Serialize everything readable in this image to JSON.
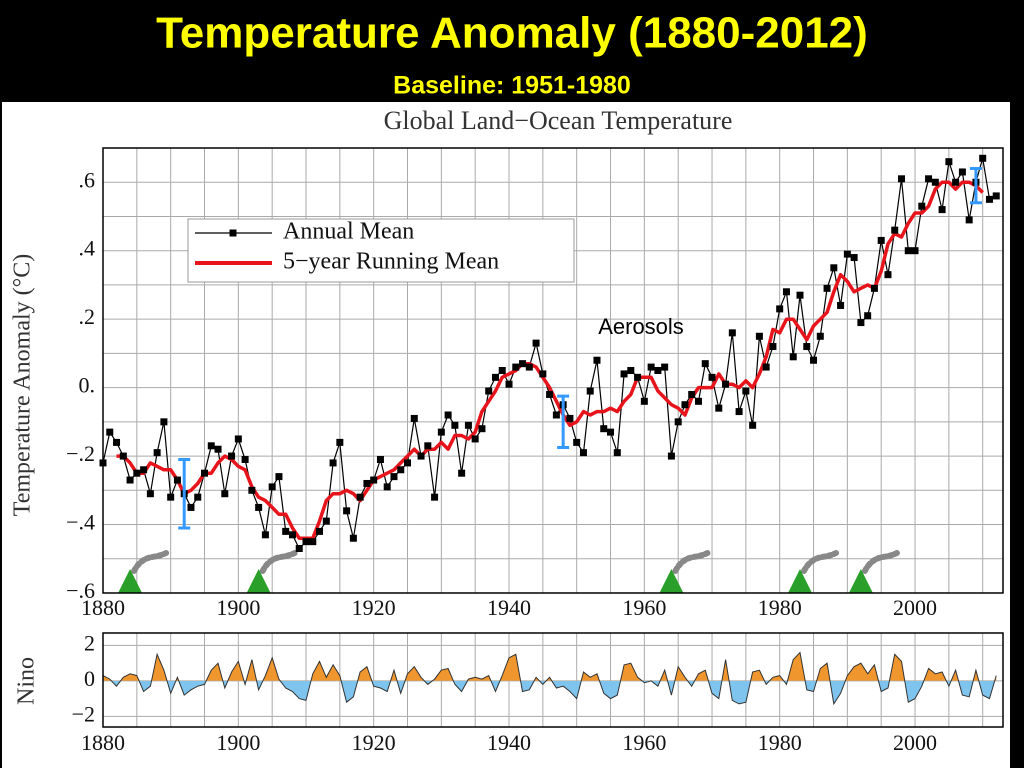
{
  "header": {
    "title": "Temperature Anomaly (1880-2012)",
    "subtitle": "Baseline: 1951-1980"
  },
  "chart_data": [
    {
      "type": "line",
      "title": "Global Land−Ocean Temperature",
      "ylabel": "Temperature Anomaly (°C)",
      "x": [
        1880,
        1881,
        1882,
        1883,
        1884,
        1885,
        1886,
        1887,
        1888,
        1889,
        1890,
        1891,
        1892,
        1893,
        1894,
        1895,
        1896,
        1897,
        1898,
        1899,
        1900,
        1901,
        1902,
        1903,
        1904,
        1905,
        1906,
        1907,
        1908,
        1909,
        1910,
        1911,
        1912,
        1913,
        1914,
        1915,
        1916,
        1917,
        1918,
        1919,
        1920,
        1921,
        1922,
        1923,
        1924,
        1925,
        1926,
        1927,
        1928,
        1929,
        1930,
        1931,
        1932,
        1933,
        1934,
        1935,
        1936,
        1937,
        1938,
        1939,
        1940,
        1941,
        1942,
        1943,
        1944,
        1945,
        1946,
        1947,
        1948,
        1949,
        1950,
        1951,
        1952,
        1953,
        1954,
        1955,
        1956,
        1957,
        1958,
        1959,
        1960,
        1961,
        1962,
        1963,
        1964,
        1965,
        1966,
        1967,
        1968,
        1969,
        1970,
        1971,
        1972,
        1973,
        1974,
        1975,
        1976,
        1977,
        1978,
        1979,
        1980,
        1981,
        1982,
        1983,
        1984,
        1985,
        1986,
        1987,
        1988,
        1989,
        1990,
        1991,
        1992,
        1993,
        1994,
        1995,
        1996,
        1997,
        1998,
        1999,
        2000,
        2001,
        2002,
        2003,
        2004,
        2005,
        2006,
        2007,
        2008,
        2009,
        2010,
        2011,
        2012
      ],
      "series": [
        {
          "name": "Annual Mean",
          "color": "#000000",
          "values": [
            -0.22,
            -0.13,
            -0.16,
            -0.2,
            -0.27,
            -0.25,
            -0.24,
            -0.31,
            -0.19,
            -0.1,
            -0.32,
            -0.27,
            -0.31,
            -0.35,
            -0.32,
            -0.25,
            -0.17,
            -0.18,
            -0.31,
            -0.2,
            -0.15,
            -0.21,
            -0.3,
            -0.35,
            -0.43,
            -0.29,
            -0.26,
            -0.42,
            -0.43,
            -0.47,
            -0.45,
            -0.45,
            -0.42,
            -0.39,
            -0.22,
            -0.16,
            -0.36,
            -0.44,
            -0.32,
            -0.28,
            -0.27,
            -0.21,
            -0.29,
            -0.26,
            -0.24,
            -0.22,
            -0.09,
            -0.2,
            -0.17,
            -0.32,
            -0.13,
            -0.08,
            -0.11,
            -0.25,
            -0.11,
            -0.15,
            -0.12,
            -0.01,
            0.03,
            0.05,
            0.01,
            0.06,
            0.07,
            0.06,
            0.13,
            0.04,
            -0.02,
            -0.08,
            -0.05,
            -0.09,
            -0.16,
            -0.19,
            -0.01,
            0.08,
            -0.12,
            -0.13,
            -0.19,
            0.04,
            0.05,
            0.03,
            -0.04,
            0.06,
            0.05,
            0.06,
            -0.2,
            -0.1,
            -0.05,
            -0.02,
            -0.04,
            0.07,
            0.03,
            -0.06,
            0.01,
            0.16,
            -0.07,
            -0.01,
            -0.11,
            0.15,
            0.06,
            0.12,
            0.23,
            0.28,
            0.09,
            0.27,
            0.12,
            0.08,
            0.15,
            0.29,
            0.35,
            0.24,
            0.39,
            0.38,
            0.19,
            0.21,
            0.29,
            0.43,
            0.33,
            0.46,
            0.61,
            0.4,
            0.4,
            0.53,
            0.61,
            0.6,
            0.52,
            0.66,
            0.6,
            0.63,
            0.49,
            0.6,
            0.67,
            0.55,
            0.56
          ]
        },
        {
          "name": "5−year Running Mean",
          "color": "#e8141c",
          "values": [
            null,
            null,
            -0.2,
            -0.2,
            -0.22,
            -0.25,
            -0.25,
            -0.22,
            -0.23,
            -0.24,
            -0.24,
            -0.27,
            -0.31,
            -0.3,
            -0.28,
            -0.25,
            -0.25,
            -0.22,
            -0.2,
            -0.21,
            -0.23,
            -0.24,
            -0.29,
            -0.32,
            -0.33,
            -0.35,
            -0.37,
            -0.37,
            -0.41,
            -0.44,
            -0.44,
            -0.44,
            -0.39,
            -0.33,
            -0.31,
            -0.31,
            -0.3,
            -0.31,
            -0.33,
            -0.3,
            -0.27,
            -0.26,
            -0.25,
            -0.24,
            -0.22,
            -0.2,
            -0.18,
            -0.2,
            -0.18,
            -0.18,
            -0.16,
            -0.18,
            -0.14,
            -0.14,
            -0.15,
            -0.13,
            -0.07,
            -0.04,
            -0.01,
            0.03,
            0.04,
            0.05,
            0.07,
            0.07,
            0.06,
            0.03,
            0.0,
            -0.04,
            -0.08,
            -0.11,
            -0.1,
            -0.07,
            -0.08,
            -0.07,
            -0.07,
            -0.06,
            -0.07,
            -0.04,
            -0.02,
            0.03,
            0.03,
            0.03,
            -0.01,
            -0.03,
            -0.05,
            -0.06,
            -0.08,
            -0.03,
            0.0,
            0.0,
            0.0,
            0.04,
            0.01,
            0.01,
            0.0,
            0.02,
            0.0,
            0.04,
            0.09,
            0.17,
            0.16,
            0.2,
            0.2,
            0.17,
            0.14,
            0.18,
            0.2,
            0.22,
            0.28,
            0.33,
            0.31,
            0.28,
            0.29,
            0.3,
            0.29,
            0.34,
            0.42,
            0.45,
            0.44,
            0.48,
            0.51,
            0.51,
            0.53,
            0.58,
            0.6,
            0.6,
            0.58,
            0.6,
            0.6,
            0.59,
            0.57,
            null,
            null
          ]
        }
      ],
      "error_bars": [
        {
          "x": 1892,
          "value": -0.31,
          "error": 0.1,
          "color": "#3399ff"
        },
        {
          "x": 1948,
          "value": -0.1,
          "error": 0.075,
          "color": "#3399ff"
        },
        {
          "x": 2009,
          "value": 0.59,
          "error": 0.05,
          "color": "#3399ff"
        }
      ],
      "volcanoes": [
        1884,
        1903,
        1964,
        1983,
        1992
      ],
      "annotations": [
        "Aerosols"
      ],
      "xlim": [
        1880,
        2013
      ],
      "xticks": [
        1880,
        1900,
        1920,
        1940,
        1960,
        1980,
        2000
      ],
      "xminor": [
        1885,
        1890,
        1895,
        1905,
        1910,
        1915,
        1925,
        1930,
        1935,
        1945,
        1950,
        1955,
        1965,
        1970,
        1975,
        1985,
        1990,
        1995,
        2005,
        2010
      ],
      "ylim": [
        -0.6,
        0.7
      ],
      "yticks": [
        {
          "value": -0.6,
          "label": "−.6"
        },
        {
          "value": -0.4,
          "label": "−.4"
        },
        {
          "value": -0.2,
          "label": "−.2"
        },
        {
          "value": 0,
          "label": "0."
        },
        {
          "value": 0.2,
          "label": ".2"
        },
        {
          "value": 0.4,
          "label": ".4"
        },
        {
          "value": 0.6,
          "label": ".6"
        }
      ],
      "yminor": [
        -0.5,
        -0.3,
        -0.1,
        0.1,
        0.3,
        0.5
      ],
      "grid": true,
      "legend": "upper left"
    },
    {
      "type": "area",
      "ylabel": "Nino",
      "x": [
        1880,
        1881,
        1882,
        1883,
        1884,
        1885,
        1886,
        1887,
        1888,
        1889,
        1890,
        1891,
        1892,
        1893,
        1894,
        1895,
        1896,
        1897,
        1898,
        1899,
        1900,
        1901,
        1902,
        1903,
        1904,
        1905,
        1906,
        1907,
        1908,
        1909,
        1910,
        1911,
        1912,
        1913,
        1914,
        1915,
        1916,
        1917,
        1918,
        1919,
        1920,
        1921,
        1922,
        1923,
        1924,
        1925,
        1926,
        1927,
        1928,
        1929,
        1930,
        1931,
        1932,
        1933,
        1934,
        1935,
        1936,
        1937,
        1938,
        1939,
        1940,
        1941,
        1942,
        1943,
        1944,
        1945,
        1946,
        1947,
        1948,
        1949,
        1950,
        1951,
        1952,
        1953,
        1954,
        1955,
        1956,
        1957,
        1958,
        1959,
        1960,
        1961,
        1962,
        1963,
        1964,
        1965,
        1966,
        1967,
        1968,
        1969,
        1970,
        1971,
        1972,
        1973,
        1974,
        1975,
        1976,
        1977,
        1978,
        1979,
        1980,
        1981,
        1982,
        1983,
        1984,
        1985,
        1986,
        1987,
        1988,
        1989,
        1990,
        1991,
        1992,
        1993,
        1994,
        1995,
        1996,
        1997,
        1998,
        1999,
        2000,
        2001,
        2002,
        2003,
        2004,
        2005,
        2006,
        2007,
        2008,
        2009,
        2010,
        2011,
        2012
      ],
      "values": [
        0.3,
        0.1,
        -0.3,
        0.2,
        0.4,
        0.3,
        -0.6,
        -0.3,
        1.5,
        0.6,
        -0.7,
        0.2,
        -0.8,
        -0.5,
        -0.3,
        -0.2,
        0.6,
        1.0,
        -0.4,
        0.5,
        1.1,
        -0.2,
        1.2,
        -0.5,
        0.3,
        1.3,
        0.1,
        -0.4,
        -0.6,
        -1.0,
        -1.1,
        0.4,
        1.1,
        0.2,
        0.9,
        0.3,
        -1.2,
        -0.9,
        0.5,
        0.8,
        -0.3,
        -0.4,
        -0.6,
        0.6,
        -0.7,
        0.4,
        0.8,
        0.2,
        -0.2,
        0.1,
        0.6,
        0.7,
        -0.2,
        -0.6,
        0.1,
        0.2,
        0.1,
        0.3,
        -0.6,
        0.3,
        1.3,
        1.5,
        -0.6,
        -0.5,
        0.2,
        -0.2,
        0.2,
        -0.4,
        -0.3,
        -0.6,
        -1.0,
        0.5,
        0.2,
        0.4,
        -0.7,
        -1.0,
        -0.8,
        0.9,
        1.0,
        0.2,
        -0.1,
        0.0,
        -0.3,
        0.6,
        -0.8,
        0.8,
        0.2,
        -0.3,
        0.4,
        0.6,
        -0.7,
        -1.0,
        1.2,
        -1.1,
        -1.3,
        -1.2,
        0.5,
        0.6,
        -0.2,
        0.2,
        0.3,
        -0.2,
        1.2,
        1.6,
        -0.5,
        -0.6,
        0.7,
        1.0,
        -1.3,
        -0.7,
        0.3,
        0.8,
        1.0,
        0.4,
        0.9,
        -0.6,
        -0.4,
        1.5,
        1.1,
        -1.2,
        -1.0,
        -0.3,
        0.7,
        0.4,
        0.5,
        -0.3,
        0.6,
        -0.8,
        -0.9,
        0.6,
        -0.8,
        -1.0,
        0.3
      ],
      "positive_color": "#f0962e",
      "negative_color": "#7ec4ee",
      "xlim": [
        1880,
        2013
      ],
      "xticks": [
        1880,
        1900,
        1920,
        1940,
        1960,
        1980,
        2000
      ],
      "xminor": [
        1885,
        1890,
        1895,
        1905,
        1910,
        1915,
        1925,
        1930,
        1935,
        1945,
        1950,
        1955,
        1965,
        1970,
        1975,
        1985,
        1990,
        1995,
        2005,
        2010
      ],
      "ylim": [
        -2.6,
        2.7
      ],
      "yticks": [
        {
          "value": -2,
          "label": "−2"
        },
        0,
        2
      ],
      "grid": true
    }
  ]
}
